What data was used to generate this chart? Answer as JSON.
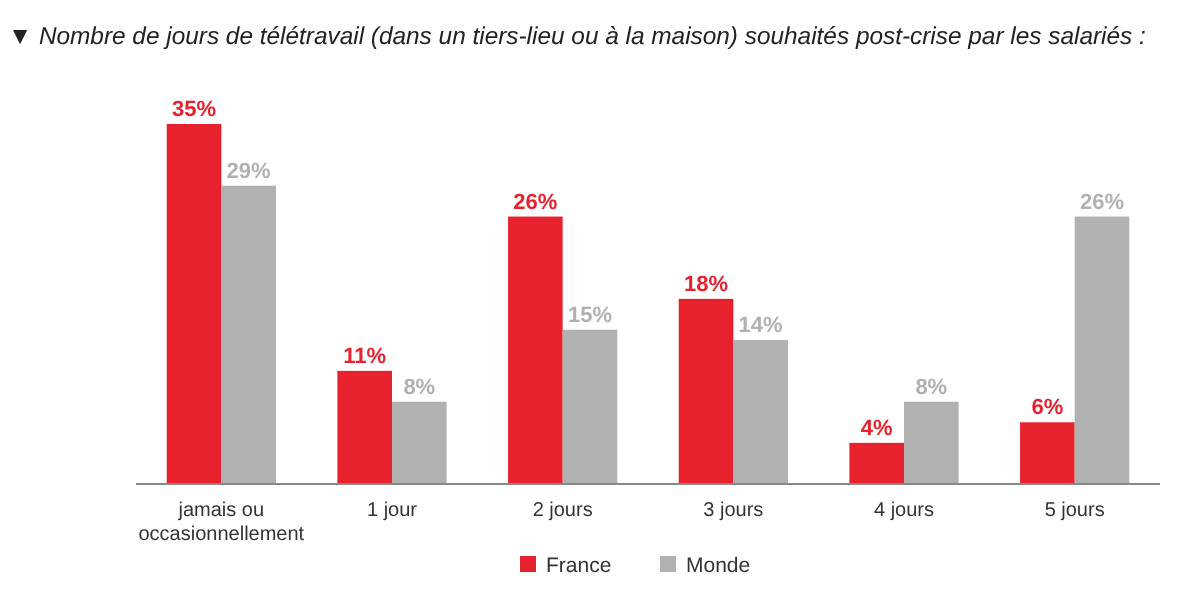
{
  "chart_data": {
    "type": "bar",
    "title": "▼ Nombre de jours de télétravail (dans un tiers-lieu ou à la maison) souhaités post-crise par les salariés :",
    "categories": [
      "jamais ou\noccasionnellement",
      "1 jour",
      "2 jours",
      "3 jours",
      "4 jours",
      "5 jours"
    ],
    "series": [
      {
        "name": "France",
        "color": "#e8212e",
        "values": [
          35,
          11,
          26,
          18,
          4,
          6
        ],
        "value_labels": [
          "35%",
          "11%",
          "26%",
          "18%",
          "4%",
          "6%"
        ]
      },
      {
        "name": "Monde",
        "color": "#b1b1b1",
        "values": [
          29,
          8,
          15,
          14,
          8,
          26
        ],
        "value_labels": [
          "29%",
          "8%",
          "15%",
          "14%",
          "8%",
          "26%"
        ]
      }
    ],
    "legend": "bottom",
    "grid": false
  }
}
